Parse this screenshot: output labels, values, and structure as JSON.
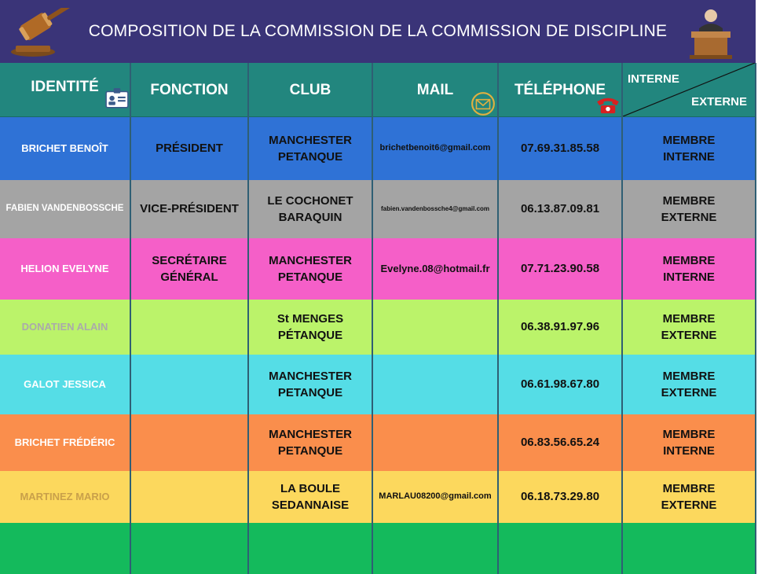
{
  "banner": {
    "title": "COMPOSITION DE LA COMMISSION DE LA COMMISSION DE DISCIPLINE",
    "left_icon": "gavel-icon",
    "right_icon": "judge-icon"
  },
  "columns": {
    "identite": "IDENTITÉ",
    "fonction": "FONCTION",
    "club": "CLUB",
    "mail": "MAIL",
    "telephone": "TÉLÉPHONE",
    "interne": "INTERNE",
    "externe": "EXTERNE",
    "icons": [
      "id-card-icon",
      "envelope-icon",
      "telephone-icon"
    ]
  },
  "colors": {
    "banner": "#3a3478",
    "header": "#22867e",
    "rows": [
      "#2f72d6",
      "#a4a4a4",
      "#f55fc8",
      "#bbf36a",
      "#55dde6",
      "#fa8e4c",
      "#fcd85d",
      "#14ba5c"
    ]
  },
  "rows": [
    {
      "identite": "BRICHET BENOÎT",
      "fonction": "PRÉSIDENT",
      "club_1": "MANCHESTER",
      "club_2": "PETANQUE",
      "mail": "brichetbenoit6@gmail.com",
      "telephone": "07.69.31.85.58",
      "membre_1": "MEMBRE",
      "membre_2": "INTERNE"
    },
    {
      "identite": "FABIEN VANDENBOSSCHE",
      "fonction": "VICE-PRÉSIDENT",
      "club_1": "LE COCHONET",
      "club_2": "BARAQUIN",
      "mail": "fabien.vandenbossche4@gmail.com",
      "telephone": "06.13.87.09.81",
      "membre_1": "MEMBRE",
      "membre_2": "EXTERNE"
    },
    {
      "identite": "HELION EVELYNE",
      "fonction_1": "SECRÉTAIRE",
      "fonction_2": "GÉNÉRAL",
      "club_1": "MANCHESTER",
      "club_2": "PETANQUE",
      "mail": "Evelyne.08@hotmail.fr",
      "telephone": "07.71.23.90.58",
      "membre_1": "MEMBRE",
      "membre_2": "INTERNE"
    },
    {
      "identite": "DONATIEN ALAIN",
      "fonction": "",
      "club_1": "St MENGES",
      "club_2": "PÉTANQUE",
      "mail": "",
      "telephone": "06.38.91.97.96",
      "membre_1": "MEMBRE",
      "membre_2": "EXTERNE"
    },
    {
      "identite": "GALOT JESSICA",
      "fonction": "",
      "club_1": "MANCHESTER",
      "club_2": "PETANQUE",
      "mail": "",
      "telephone": "06.61.98.67.80",
      "membre_1": "MEMBRE",
      "membre_2": "EXTERNE"
    },
    {
      "identite": "BRICHET FRÉDÉRIC",
      "fonction": "",
      "club_1": "MANCHESTER",
      "club_2": "PETANQUE",
      "mail": "",
      "telephone": "06.83.56.65.24",
      "membre_1": "MEMBRE",
      "membre_2": "INTERNE"
    },
    {
      "identite": "MARTINEZ MARIO",
      "fonction": "",
      "club_1": "LA BOULE",
      "club_2": "SEDANNAISE",
      "mail": "MARLAU08200@gmail.com",
      "telephone": "06.18.73.29.80",
      "membre_1": "MEMBRE",
      "membre_2": "EXTERNE"
    }
  ]
}
